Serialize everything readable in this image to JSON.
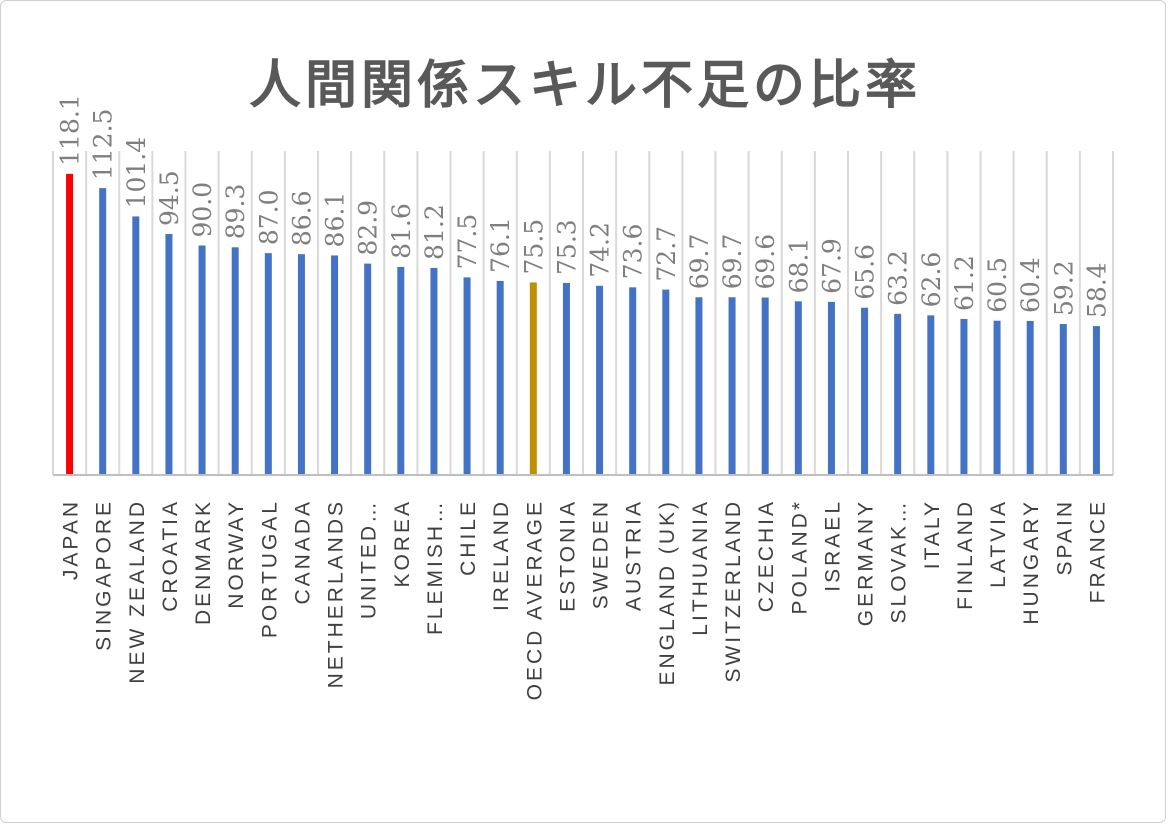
{
  "chart_data": {
    "type": "bar",
    "title": "人間関係スキル不足の比率",
    "categories": [
      "JAPAN",
      "SINGAPORE",
      "NEW ZEALAND",
      "CROATIA",
      "DENMARK",
      "NORWAY",
      "PORTUGAL",
      "CANADA",
      "NETHERLANDS",
      "UNITED…",
      "KOREA",
      "FLEMISH…",
      "CHILE",
      "IRELAND",
      "OECD AVERAGE",
      "ESTONIA",
      "SWEDEN",
      "AUSTRIA",
      "ENGLAND (UK)",
      "LITHUANIA",
      "SWITZERLAND",
      "CZECHIA",
      "POLAND*",
      "ISRAEL",
      "GERMANY",
      "SLOVAK…",
      "ITALY",
      "FINLAND",
      "LATVIA",
      "HUNGARY",
      "SPAIN",
      "FRANCE"
    ],
    "values": [
      118.1,
      112.5,
      101.4,
      94.5,
      90.0,
      89.3,
      87.0,
      86.6,
      86.1,
      82.9,
      81.6,
      81.2,
      77.5,
      76.1,
      75.5,
      75.3,
      74.2,
      73.6,
      72.7,
      69.7,
      69.7,
      69.6,
      68.1,
      67.9,
      65.6,
      63.2,
      62.6,
      61.2,
      60.5,
      60.4,
      59.2,
      58.4
    ],
    "value_labels": [
      "118.1",
      "112.5",
      "101.4",
      "94.5",
      "90.0",
      "89.3",
      "87.0",
      "86.6",
      "86.1",
      "82.9",
      "81.6",
      "81.2",
      "77.5",
      "76.1",
      "75.5",
      "75.3",
      "74.2",
      "73.6",
      "72.7",
      "69.7",
      "69.7",
      "69.6",
      "68.1",
      "67.9",
      "65.6",
      "63.2",
      "62.6",
      "61.2",
      "60.5",
      "60.4",
      "59.2",
      "58.4"
    ],
    "ylim": [
      0,
      120
    ],
    "grid": "vertical",
    "legend": "none",
    "colors": {
      "default": "#4472c4",
      "JAPAN": "#ff0000",
      "OECD AVERAGE": "#bf9000",
      "grid": "#d9d9d9",
      "axis": "#bfbfbf"
    }
  }
}
